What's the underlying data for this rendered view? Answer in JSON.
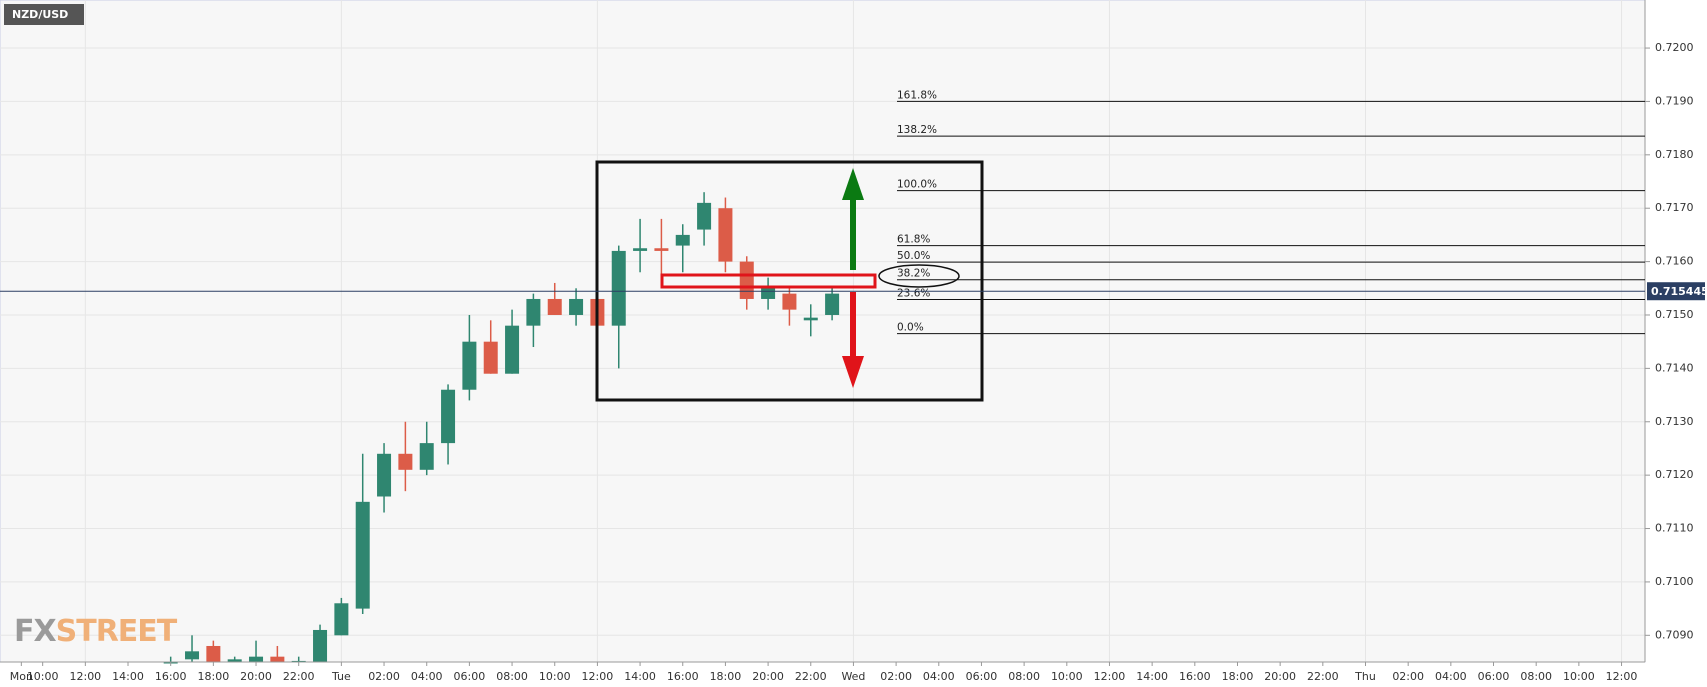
{
  "chart_data": {
    "type": "candlestick",
    "title": "NZD/USD",
    "watermark": {
      "prefix": "FX",
      "suffix": "STREET"
    },
    "categories": [
      "Mon",
      "10:00",
      null,
      "12:00",
      null,
      "14:00",
      null,
      "16:00",
      null,
      "18:00",
      null,
      "20:00",
      null,
      "22:00",
      null,
      "Tue",
      null,
      "02:00",
      null,
      "04:00",
      null,
      "06:00",
      null,
      "08:00",
      null,
      "10:00",
      null,
      "12:00",
      null,
      "14:00",
      null,
      "16:00",
      null,
      "18:00",
      null,
      "20:00",
      null,
      "22:00",
      null,
      "Wed",
      null,
      "02:00",
      null,
      "04:00",
      null,
      "06:00",
      null,
      "08:00",
      null,
      "10:00",
      null,
      "12:00",
      null,
      "14:00",
      null,
      "16:00",
      null,
      "18:00",
      null,
      "20:00",
      null,
      "22:00",
      null,
      "Thu",
      null,
      "02:00",
      null,
      "04:00",
      null,
      "06:00",
      null,
      "08:00",
      null,
      "10:00",
      null,
      "12:00",
      null
    ],
    "open": [
      null,
      null,
      null,
      null,
      null,
      null,
      null,
      0.7085,
      0.70855,
      0.7088,
      0.7085,
      0.7085,
      0.7086,
      0.7085,
      0.7085,
      0.709,
      0.7095,
      0.7116,
      0.7124,
      0.7121,
      0.7126,
      0.7136,
      0.7145,
      0.7139,
      0.7148,
      0.7153,
      0.715,
      0.7153,
      0.7148,
      0.7162,
      0.71625,
      0.7163,
      0.7166,
      0.717,
      0.716,
      0.7153,
      0.7154,
      0.7149,
      0.715,
      null,
      null,
      null,
      null,
      null,
      null,
      null,
      null,
      null,
      null,
      null,
      null,
      null,
      null,
      null,
      null,
      null,
      null,
      null,
      null,
      null,
      null,
      null,
      null,
      null,
      null,
      null,
      null,
      null,
      null,
      null,
      null,
      null,
      null,
      null,
      null,
      null,
      null
    ],
    "close": [
      null,
      null,
      null,
      null,
      null,
      null,
      null,
      0.7085,
      0.7087,
      0.7085,
      0.70855,
      0.7086,
      0.7085,
      0.70852,
      0.7091,
      0.7096,
      0.7115,
      0.7124,
      0.7121,
      0.7126,
      0.7136,
      0.7145,
      0.7139,
      0.7148,
      0.7153,
      0.715,
      0.7153,
      0.7148,
      0.7162,
      0.71625,
      0.7162,
      0.7165,
      0.7171,
      0.716,
      0.7153,
      0.7155,
      0.7151,
      0.71495,
      0.7154,
      null,
      null,
      null,
      null,
      null,
      null,
      null,
      null,
      null,
      null,
      null,
      null,
      null,
      null,
      null,
      null,
      null,
      null,
      null,
      null,
      null,
      null,
      null,
      null,
      null,
      null,
      null,
      null,
      null,
      null,
      null,
      null,
      null,
      null,
      null,
      null,
      null,
      null
    ],
    "high": [
      null,
      null,
      null,
      null,
      null,
      null,
      null,
      0.7086,
      0.709,
      0.7089,
      0.7086,
      0.7089,
      0.7088,
      0.7086,
      0.7092,
      0.7097,
      0.7124,
      0.7126,
      0.713,
      0.713,
      0.7137,
      0.715,
      0.7149,
      0.7151,
      0.7154,
      0.7156,
      0.7155,
      0.7154,
      0.7163,
      0.7168,
      0.7168,
      0.7167,
      0.7173,
      0.7172,
      0.7161,
      0.7157,
      0.7155,
      0.7152,
      0.7155,
      null,
      null,
      null,
      null,
      null,
      null,
      null,
      null,
      null,
      null,
      null,
      null,
      null,
      null,
      null,
      null,
      null,
      null,
      null,
      null,
      null,
      null,
      null,
      null,
      null,
      null,
      null,
      null,
      null,
      null,
      null,
      null,
      null,
      null,
      null,
      null,
      null,
      null
    ],
    "low": [
      null,
      null,
      null,
      null,
      null,
      null,
      null,
      0.7085,
      0.7085,
      0.7085,
      0.7085,
      0.7085,
      0.7085,
      0.7085,
      0.7085,
      0.709,
      0.7094,
      0.7113,
      0.7117,
      0.712,
      0.7122,
      0.7134,
      0.7139,
      0.7139,
      0.7144,
      0.715,
      0.7148,
      0.7148,
      0.714,
      0.7158,
      0.7156,
      0.7158,
      0.7163,
      0.7158,
      0.7151,
      0.7151,
      0.7148,
      0.7146,
      0.7149,
      null,
      null,
      null,
      null,
      null,
      null,
      null,
      null,
      null,
      null,
      null,
      null,
      null,
      null,
      null,
      null,
      null,
      null,
      null,
      null,
      null,
      null,
      null,
      null,
      null,
      null,
      null,
      null,
      null,
      null,
      null,
      null,
      null,
      null,
      null,
      null,
      null,
      null
    ],
    "up_color": "#2f8670",
    "down_color": "#dc5c48",
    "ylim": [
      0.7085,
      0.7209
    ],
    "yticks": [
      {
        "value": 0.709,
        "label": "0.7090"
      },
      {
        "value": 0.71,
        "label": "0.7100"
      },
      {
        "value": 0.711,
        "label": "0.7110"
      },
      {
        "value": 0.712,
        "label": "0.7120"
      },
      {
        "value": 0.713,
        "label": "0.7130"
      },
      {
        "value": 0.714,
        "label": "0.7140"
      },
      {
        "value": 0.715,
        "label": "0.7150"
      },
      {
        "value": 0.716,
        "label": "0.7160"
      },
      {
        "value": 0.717,
        "label": "0.7170"
      },
      {
        "value": 0.718,
        "label": "0.7180"
      },
      {
        "value": 0.719,
        "label": "0.7190"
      },
      {
        "value": 0.72,
        "label": "0.7200"
      }
    ],
    "grid": true,
    "last_price": 0.715445,
    "fib_levels": [
      {
        "label": "161.8%",
        "value": 0.719
      },
      {
        "label": "138.2%",
        "value": 0.71835
      },
      {
        "label": "100.0%",
        "value": 0.71733
      },
      {
        "label": "61.8%",
        "value": 0.7163
      },
      {
        "label": "50.0%",
        "value": 0.71599
      },
      {
        "label": "38.2%",
        "value": 0.71566
      },
      {
        "label": "23.6%",
        "value": 0.71529
      },
      {
        "label": "0.0%",
        "value": 0.71465
      }
    ]
  }
}
